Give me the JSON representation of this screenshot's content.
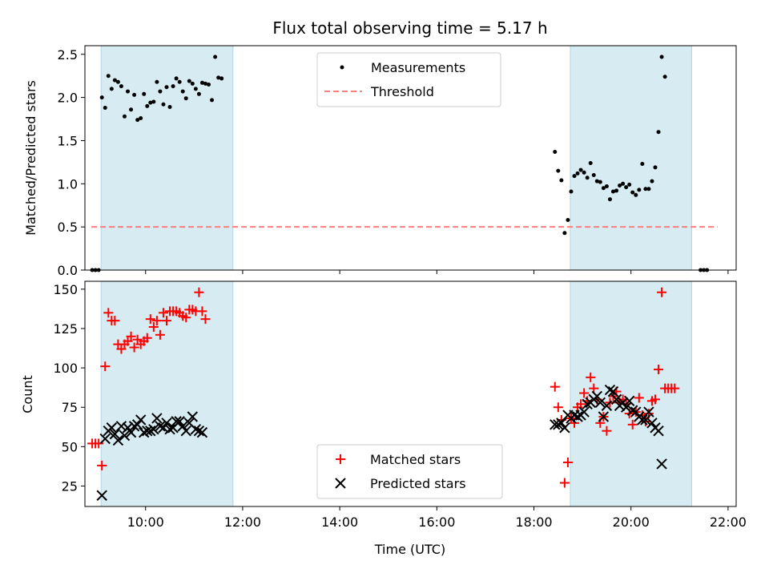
{
  "chart_data": [
    {
      "type": "scatter",
      "title": "Flux total observing time = 5.17 h",
      "ylabel": "Matched/Predicted stars",
      "xlim": [
        "08:45",
        "22:10"
      ],
      "ylim": [
        0,
        2.6
      ],
      "yticks": [
        "0.0",
        "0.5",
        "1.0",
        "1.5",
        "2.0",
        "2.5"
      ],
      "shaded_intervals": [
        [
          "09:05",
          "11:48"
        ],
        [
          "18:45",
          "21:15"
        ]
      ],
      "shade_color": "#add8e6",
      "series": [
        {
          "name": "Measurements",
          "marker": "dot",
          "color": "#000000",
          "points": [
            [
              "08:54",
              0
            ],
            [
              "08:58",
              0
            ],
            [
              "09:02",
              0
            ],
            [
              "09:06",
              2.0
            ],
            [
              "09:10",
              1.88
            ],
            [
              "09:14",
              2.25
            ],
            [
              "09:18",
              2.1
            ],
            [
              "09:22",
              2.2
            ],
            [
              "09:26",
              2.18
            ],
            [
              "09:30",
              2.13
            ],
            [
              "09:34",
              1.78
            ],
            [
              "09:38",
              2.07
            ],
            [
              "09:42",
              1.86
            ],
            [
              "09:46",
              2.03
            ],
            [
              "09:50",
              1.74
            ],
            [
              "09:54",
              1.76
            ],
            [
              "09:58",
              2.04
            ],
            [
              "10:02",
              1.9
            ],
            [
              "10:06",
              1.94
            ],
            [
              "10:10",
              1.95
            ],
            [
              "10:14",
              2.18
            ],
            [
              "10:18",
              2.07
            ],
            [
              "10:22",
              1.92
            ],
            [
              "10:26",
              2.12
            ],
            [
              "10:30",
              1.89
            ],
            [
              "10:34",
              2.13
            ],
            [
              "10:38",
              2.22
            ],
            [
              "10:42",
              2.18
            ],
            [
              "10:46",
              2.07
            ],
            [
              "10:50",
              1.99
            ],
            [
              "10:54",
              2.19
            ],
            [
              "10:58",
              2.16
            ],
            [
              "11:02",
              2.1
            ],
            [
              "11:06",
              2.04
            ],
            [
              "11:10",
              2.17
            ],
            [
              "11:14",
              2.16
            ],
            [
              "11:18",
              2.15
            ],
            [
              "11:22",
              1.97
            ],
            [
              "11:26",
              2.47
            ],
            [
              "11:30",
              2.23
            ],
            [
              "11:34",
              2.22
            ],
            [
              "18:26",
              1.37
            ],
            [
              "18:30",
              1.15
            ],
            [
              "18:34",
              1.04
            ],
            [
              "18:38",
              0.43
            ],
            [
              "18:42",
              0.58
            ],
            [
              "18:46",
              0.91
            ],
            [
              "18:50",
              1.09
            ],
            [
              "18:54",
              1.12
            ],
            [
              "18:58",
              1.16
            ],
            [
              "19:02",
              1.13
            ],
            [
              "19:06",
              1.07
            ],
            [
              "19:10",
              1.24
            ],
            [
              "19:14",
              1.1
            ],
            [
              "19:18",
              1.03
            ],
            [
              "19:22",
              1.02
            ],
            [
              "19:26",
              0.95
            ],
            [
              "19:30",
              0.97
            ],
            [
              "19:34",
              0.82
            ],
            [
              "19:38",
              0.91
            ],
            [
              "19:42",
              0.92
            ],
            [
              "19:46",
              0.98
            ],
            [
              "19:50",
              1.0
            ],
            [
              "19:54",
              0.96
            ],
            [
              "19:58",
              0.99
            ],
            [
              "20:02",
              0.9
            ],
            [
              "20:06",
              0.87
            ],
            [
              "20:10",
              0.93
            ],
            [
              "20:14",
              1.23
            ],
            [
              "20:18",
              0.94
            ],
            [
              "20:22",
              0.94
            ],
            [
              "20:26",
              1.03
            ],
            [
              "20:30",
              1.19
            ],
            [
              "20:34",
              1.6
            ],
            [
              "20:38",
              2.47
            ],
            [
              "20:42",
              2.24
            ],
            [
              "21:26",
              0
            ],
            [
              "21:30",
              0
            ],
            [
              "21:34",
              0
            ]
          ]
        },
        {
          "name": "Threshold",
          "style": "dashed",
          "color": "#ff7f7f",
          "points": [
            [
              "08:53",
              0.5
            ],
            [
              "21:47",
              0.5
            ]
          ]
        }
      ]
    },
    {
      "type": "scatter",
      "xlabel": "Time (UTC)",
      "ylabel": "Count",
      "xlim": [
        "08:45",
        "22:10"
      ],
      "ylim": [
        12,
        155
      ],
      "xticks": [
        "10:00",
        "12:00",
        "14:00",
        "16:00",
        "18:00",
        "20:00",
        "22:00"
      ],
      "yticks": [
        "25",
        "50",
        "75",
        "100",
        "125",
        "150"
      ],
      "shaded_intervals": [
        [
          "09:05",
          "11:48"
        ],
        [
          "18:45",
          "21:15"
        ]
      ],
      "shade_color": "#add8e6",
      "series": [
        {
          "name": "Matched stars",
          "marker": "plus",
          "color": "#ff0000",
          "points": [
            [
              "08:54",
              52
            ],
            [
              "08:58",
              52
            ],
            [
              "09:02",
              52
            ],
            [
              "09:06",
              38
            ],
            [
              "09:10",
              101
            ],
            [
              "09:14",
              135
            ],
            [
              "09:18",
              130
            ],
            [
              "09:22",
              130
            ],
            [
              "09:26",
              115
            ],
            [
              "09:30",
              112
            ],
            [
              "09:34",
              115
            ],
            [
              "09:38",
              117
            ],
            [
              "09:42",
              120
            ],
            [
              "09:46",
              113
            ],
            [
              "09:50",
              118
            ],
            [
              "09:54",
              115
            ],
            [
              "09:58",
              117
            ],
            [
              "10:02",
              119
            ],
            [
              "10:06",
              131
            ],
            [
              "10:10",
              126
            ],
            [
              "10:14",
              130
            ],
            [
              "10:18",
              121
            ],
            [
              "10:22",
              135
            ],
            [
              "10:26",
              130
            ],
            [
              "10:30",
              136
            ],
            [
              "10:34",
              136
            ],
            [
              "10:38",
              136
            ],
            [
              "10:42",
              135
            ],
            [
              "10:46",
              133
            ],
            [
              "10:50",
              132
            ],
            [
              "10:54",
              137
            ],
            [
              "10:58",
              137
            ],
            [
              "11:02",
              136
            ],
            [
              "11:06",
              148
            ],
            [
              "11:10",
              136
            ],
            [
              "11:14",
              131
            ],
            [
              "18:26",
              88
            ],
            [
              "18:30",
              75
            ],
            [
              "18:34",
              67
            ],
            [
              "18:38",
              27
            ],
            [
              "18:42",
              40
            ],
            [
              "18:46",
              68
            ],
            [
              "18:50",
              65
            ],
            [
              "18:54",
              75
            ],
            [
              "18:58",
              77
            ],
            [
              "19:02",
              84
            ],
            [
              "19:06",
              79
            ],
            [
              "19:10",
              94
            ],
            [
              "19:14",
              87
            ],
            [
              "19:18",
              80
            ],
            [
              "19:22",
              65
            ],
            [
              "19:26",
              69
            ],
            [
              "19:30",
              60
            ],
            [
              "19:34",
              78
            ],
            [
              "19:38",
              82
            ],
            [
              "19:42",
              85
            ],
            [
              "19:46",
              78
            ],
            [
              "19:50",
              80
            ],
            [
              "19:54",
              77
            ],
            [
              "19:58",
              71
            ],
            [
              "20:02",
              64
            ],
            [
              "20:06",
              72
            ],
            [
              "20:10",
              81
            ],
            [
              "20:14",
              70
            ],
            [
              "20:18",
              66
            ],
            [
              "20:22",
              71
            ],
            [
              "20:26",
              79
            ],
            [
              "20:30",
              80
            ],
            [
              "20:34",
              99
            ],
            [
              "20:38",
              148
            ],
            [
              "20:42",
              87
            ],
            [
              "20:46",
              87
            ],
            [
              "20:50",
              87
            ],
            [
              "20:54",
              87
            ]
          ]
        },
        {
          "name": "Predicted stars",
          "marker": "x",
          "color": "#000000",
          "points": [
            [
              "09:06",
              19
            ],
            [
              "09:10",
              55
            ],
            [
              "09:14",
              60
            ],
            [
              "09:18",
              62
            ],
            [
              "09:22",
              58
            ],
            [
              "09:26",
              54
            ],
            [
              "09:30",
              63
            ],
            [
              "09:34",
              57
            ],
            [
              "09:38",
              62
            ],
            [
              "09:42",
              59
            ],
            [
              "09:46",
              63
            ],
            [
              "09:50",
              64
            ],
            [
              "09:54",
              67
            ],
            [
              "09:58",
              59
            ],
            [
              "10:02",
              60
            ],
            [
              "10:06",
              60
            ],
            [
              "10:10",
              61
            ],
            [
              "10:14",
              68
            ],
            [
              "10:18",
              63
            ],
            [
              "10:22",
              62
            ],
            [
              "10:26",
              65
            ],
            [
              "10:30",
              61
            ],
            [
              "10:34",
              62
            ],
            [
              "10:38",
              66
            ],
            [
              "10:42",
              66
            ],
            [
              "10:46",
              63
            ],
            [
              "10:50",
              60
            ],
            [
              "10:54",
              65
            ],
            [
              "10:58",
              69
            ],
            [
              "11:02",
              61
            ],
            [
              "11:06",
              60
            ],
            [
              "11:10",
              59
            ],
            [
              "18:26",
              64
            ],
            [
              "18:30",
              64
            ],
            [
              "18:34",
              65
            ],
            [
              "18:38",
              62
            ],
            [
              "18:42",
              70
            ],
            [
              "18:46",
              68
            ],
            [
              "18:50",
              70
            ],
            [
              "18:54",
              69
            ],
            [
              "18:58",
              70
            ],
            [
              "19:02",
              72
            ],
            [
              "19:06",
              77
            ],
            [
              "19:10",
              78
            ],
            [
              "19:14",
              80
            ],
            [
              "19:18",
              82
            ],
            [
              "19:22",
              78
            ],
            [
              "19:26",
              69
            ],
            [
              "19:30",
              76
            ],
            [
              "19:34",
              86
            ],
            [
              "19:38",
              85
            ],
            [
              "19:42",
              80
            ],
            [
              "19:46",
              76
            ],
            [
              "19:50",
              78
            ],
            [
              "19:54",
              75
            ],
            [
              "19:58",
              79
            ],
            [
              "20:02",
              73
            ],
            [
              "20:06",
              72
            ],
            [
              "20:10",
              69
            ],
            [
              "20:14",
              67
            ],
            [
              "20:18",
              67
            ],
            [
              "20:22",
              72
            ],
            [
              "20:26",
              65
            ],
            [
              "20:30",
              62
            ],
            [
              "20:34",
              60
            ],
            [
              "20:38",
              39
            ]
          ]
        }
      ]
    }
  ]
}
